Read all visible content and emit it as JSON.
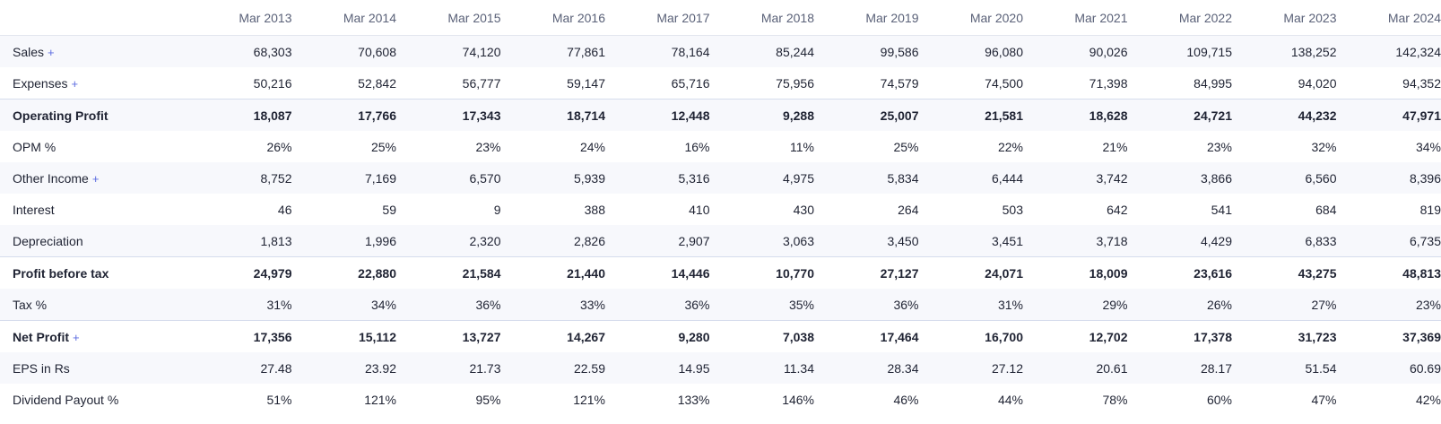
{
  "table": {
    "years": [
      "Mar 2013",
      "Mar 2014",
      "Mar 2015",
      "Mar 2016",
      "Mar 2017",
      "Mar 2018",
      "Mar 2019",
      "Mar 2020",
      "Mar 2021",
      "Mar 2022",
      "Mar 2023",
      "Mar 2024"
    ],
    "plus_symbol": "+",
    "rows": [
      {
        "key": "sales",
        "label": "Sales",
        "expandable": true,
        "bold": false,
        "striped": true,
        "separator_top": false,
        "values": [
          "68,303",
          "70,608",
          "74,120",
          "77,861",
          "78,164",
          "85,244",
          "99,586",
          "96,080",
          "90,026",
          "109,715",
          "138,252",
          "142,324"
        ]
      },
      {
        "key": "expenses",
        "label": "Expenses",
        "expandable": true,
        "bold": false,
        "striped": false,
        "separator_top": false,
        "values": [
          "50,216",
          "52,842",
          "56,777",
          "59,147",
          "65,716",
          "75,956",
          "74,579",
          "74,500",
          "71,398",
          "84,995",
          "94,020",
          "94,352"
        ]
      },
      {
        "key": "operating-profit",
        "label": "Operating Profit",
        "expandable": false,
        "bold": true,
        "striped": true,
        "separator_top": true,
        "values": [
          "18,087",
          "17,766",
          "17,343",
          "18,714",
          "12,448",
          "9,288",
          "25,007",
          "21,581",
          "18,628",
          "24,721",
          "44,232",
          "47,971"
        ]
      },
      {
        "key": "opm",
        "label": "OPM %",
        "expandable": false,
        "bold": false,
        "striped": false,
        "separator_top": false,
        "values": [
          "26%",
          "25%",
          "23%",
          "24%",
          "16%",
          "11%",
          "25%",
          "22%",
          "21%",
          "23%",
          "32%",
          "34%"
        ]
      },
      {
        "key": "other-income",
        "label": "Other Income",
        "expandable": true,
        "bold": false,
        "striped": true,
        "separator_top": false,
        "values": [
          "8,752",
          "7,169",
          "6,570",
          "5,939",
          "5,316",
          "4,975",
          "5,834",
          "6,444",
          "3,742",
          "3,866",
          "6,560",
          "8,396"
        ]
      },
      {
        "key": "interest",
        "label": "Interest",
        "expandable": false,
        "bold": false,
        "striped": false,
        "separator_top": false,
        "values": [
          "46",
          "59",
          "9",
          "388",
          "410",
          "430",
          "264",
          "503",
          "642",
          "541",
          "684",
          "819"
        ]
      },
      {
        "key": "depreciation",
        "label": "Depreciation",
        "expandable": false,
        "bold": false,
        "striped": true,
        "separator_top": false,
        "values": [
          "1,813",
          "1,996",
          "2,320",
          "2,826",
          "2,907",
          "3,063",
          "3,450",
          "3,451",
          "3,718",
          "4,429",
          "6,833",
          "6,735"
        ]
      },
      {
        "key": "profit-before-tax",
        "label": "Profit before tax",
        "expandable": false,
        "bold": true,
        "striped": false,
        "separator_top": true,
        "values": [
          "24,979",
          "22,880",
          "21,584",
          "21,440",
          "14,446",
          "10,770",
          "27,127",
          "24,071",
          "18,009",
          "23,616",
          "43,275",
          "48,813"
        ]
      },
      {
        "key": "tax",
        "label": "Tax %",
        "expandable": false,
        "bold": false,
        "striped": true,
        "separator_top": false,
        "values": [
          "31%",
          "34%",
          "36%",
          "33%",
          "36%",
          "35%",
          "36%",
          "31%",
          "29%",
          "26%",
          "27%",
          "23%"
        ]
      },
      {
        "key": "net-profit",
        "label": "Net Profit",
        "expandable": true,
        "bold": true,
        "striped": false,
        "separator_top": true,
        "values": [
          "17,356",
          "15,112",
          "13,727",
          "14,267",
          "9,280",
          "7,038",
          "17,464",
          "16,700",
          "12,702",
          "17,378",
          "31,723",
          "37,369"
        ]
      },
      {
        "key": "eps",
        "label": "EPS in Rs",
        "expandable": false,
        "bold": false,
        "striped": true,
        "separator_top": false,
        "values": [
          "27.48",
          "23.92",
          "21.73",
          "22.59",
          "14.95",
          "11.34",
          "28.34",
          "27.12",
          "20.61",
          "28.17",
          "51.54",
          "60.69"
        ]
      },
      {
        "key": "dividend-payout",
        "label": "Dividend Payout %",
        "expandable": false,
        "bold": false,
        "striped": false,
        "separator_top": false,
        "values": [
          "51%",
          "121%",
          "95%",
          "121%",
          "133%",
          "146%",
          "46%",
          "44%",
          "78%",
          "60%",
          "47%",
          "42%"
        ]
      }
    ]
  },
  "colors": {
    "text": "#1f2333",
    "header_text": "#5a6178",
    "plus_accent": "#5b6be0",
    "stripe": "#f7f8fc",
    "separator": "#d5dcec"
  }
}
